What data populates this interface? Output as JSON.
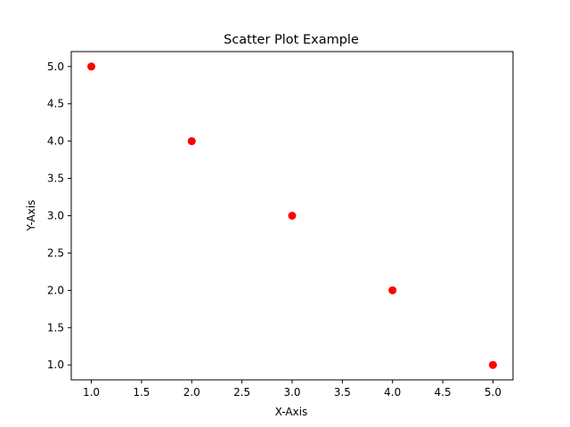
{
  "chart_data": {
    "type": "scatter",
    "title": "Scatter Plot Example",
    "xlabel": "X-Axis",
    "ylabel": "Y-Axis",
    "xlim": [
      0.8,
      5.2
    ],
    "ylim": [
      0.8,
      5.2
    ],
    "x_ticks": [
      1.0,
      1.5,
      2.0,
      2.5,
      3.0,
      3.5,
      4.0,
      4.5,
      5.0
    ],
    "y_ticks": [
      1.0,
      1.5,
      2.0,
      2.5,
      3.0,
      3.5,
      4.0,
      4.5,
      5.0
    ],
    "x_tick_labels": [
      "1.0",
      "1.5",
      "2.0",
      "2.5",
      "3.0",
      "3.5",
      "4.0",
      "4.5",
      "5.0"
    ],
    "y_tick_labels": [
      "1.0",
      "1.5",
      "2.0",
      "2.5",
      "3.0",
      "3.5",
      "4.0",
      "4.5",
      "5.0"
    ],
    "grid": false,
    "legend": "none",
    "series": [
      {
        "color": "#ff0000",
        "marker": "circle",
        "points": [
          {
            "x": 1,
            "y": 5
          },
          {
            "x": 2,
            "y": 4
          },
          {
            "x": 3,
            "y": 3
          },
          {
            "x": 4,
            "y": 2
          },
          {
            "x": 5,
            "y": 1
          }
        ]
      }
    ]
  }
}
